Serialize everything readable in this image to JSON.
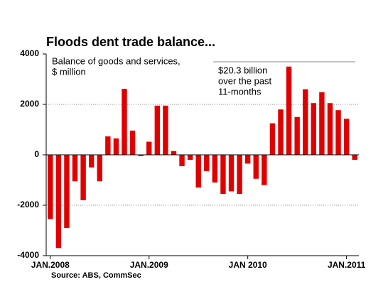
{
  "chart_data": {
    "type": "bar",
    "title": "Floods dent trade balance...",
    "subtitle": [
      "Balance of goods and services,",
      "$ million"
    ],
    "annotation": [
      "$20.3 billion",
      "over the past",
      "11-months"
    ],
    "source": "Source: ABS, CommSec",
    "categories": [
      "JAN.2008",
      null,
      null,
      null,
      null,
      null,
      null,
      null,
      null,
      null,
      null,
      null,
      "JAN.2009",
      null,
      null,
      null,
      null,
      null,
      null,
      null,
      null,
      null,
      null,
      null,
      "JAN 2010",
      null,
      null,
      null,
      null,
      null,
      null,
      null,
      null,
      null,
      null,
      null,
      "JAN.2011",
      null
    ],
    "values": [
      -2550,
      -3700,
      -2900,
      -1050,
      -1800,
      -500,
      -1050,
      730,
      650,
      2620,
      960,
      -50,
      520,
      1950,
      1950,
      150,
      -450,
      -200,
      -1300,
      -650,
      -1100,
      -1550,
      -1450,
      -1550,
      -350,
      -950,
      -1200,
      1250,
      1800,
      3500,
      1500,
      2600,
      2050,
      2480,
      2050,
      1770,
      1430,
      -200
    ],
    "color": "#e00000",
    "ylim": [
      -4000,
      4000
    ],
    "yticks": [
      -4000,
      -2000,
      0,
      2000,
      4000
    ],
    "grid": true
  }
}
